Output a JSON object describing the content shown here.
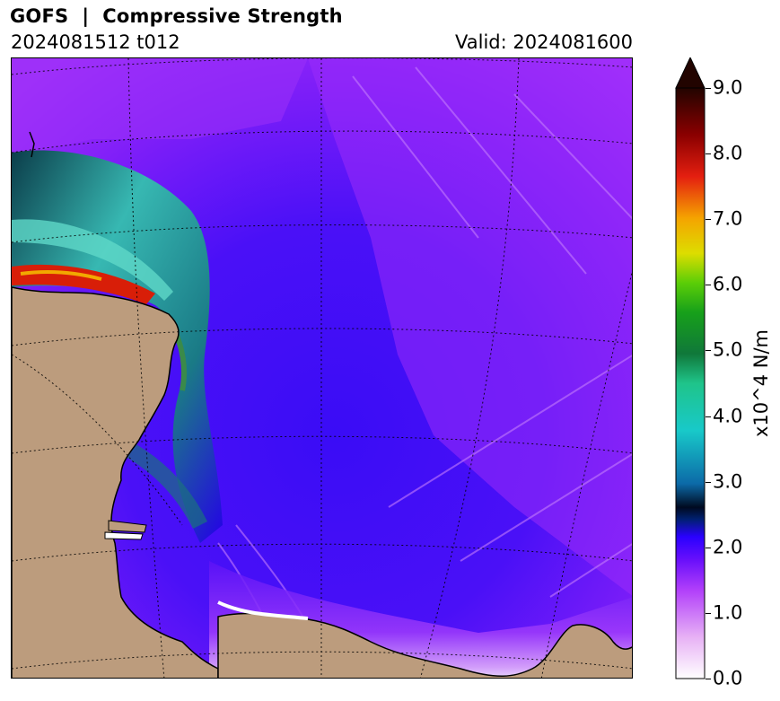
{
  "header": {
    "title": "GOFS  |  Compressive Strength",
    "init_time": "2024081512 t012",
    "valid_time": "Valid: 2024081600"
  },
  "map": {
    "colors": {
      "land": "#bc9c7d",
      "ice_low": "#9f1dfa",
      "ice_mid": "#3508f5",
      "ice_high_teal": "#3fbfb0",
      "ice_peak": "#d51c0a",
      "coastline": "#000000",
      "graticule": "#000000"
    }
  },
  "colorbar": {
    "label": "x10^4 N/m",
    "min": 0.0,
    "max": 9.0,
    "extend": "max",
    "tick_labels": [
      "0.0",
      "1.0",
      "2.0",
      "3.0",
      "4.0",
      "5.0",
      "6.0",
      "7.0",
      "8.0",
      "9.0"
    ],
    "colors": [
      "#ffffff",
      "#e7b1f5",
      "#b13ffa",
      "#2a00ff",
      "#0c6aa8",
      "#18c9c9",
      "#1fa36b",
      "#17a01a",
      "#5bce07",
      "#dddd00",
      "#f5a300",
      "#e41f10",
      "#8b0000",
      "#220400"
    ]
  }
}
